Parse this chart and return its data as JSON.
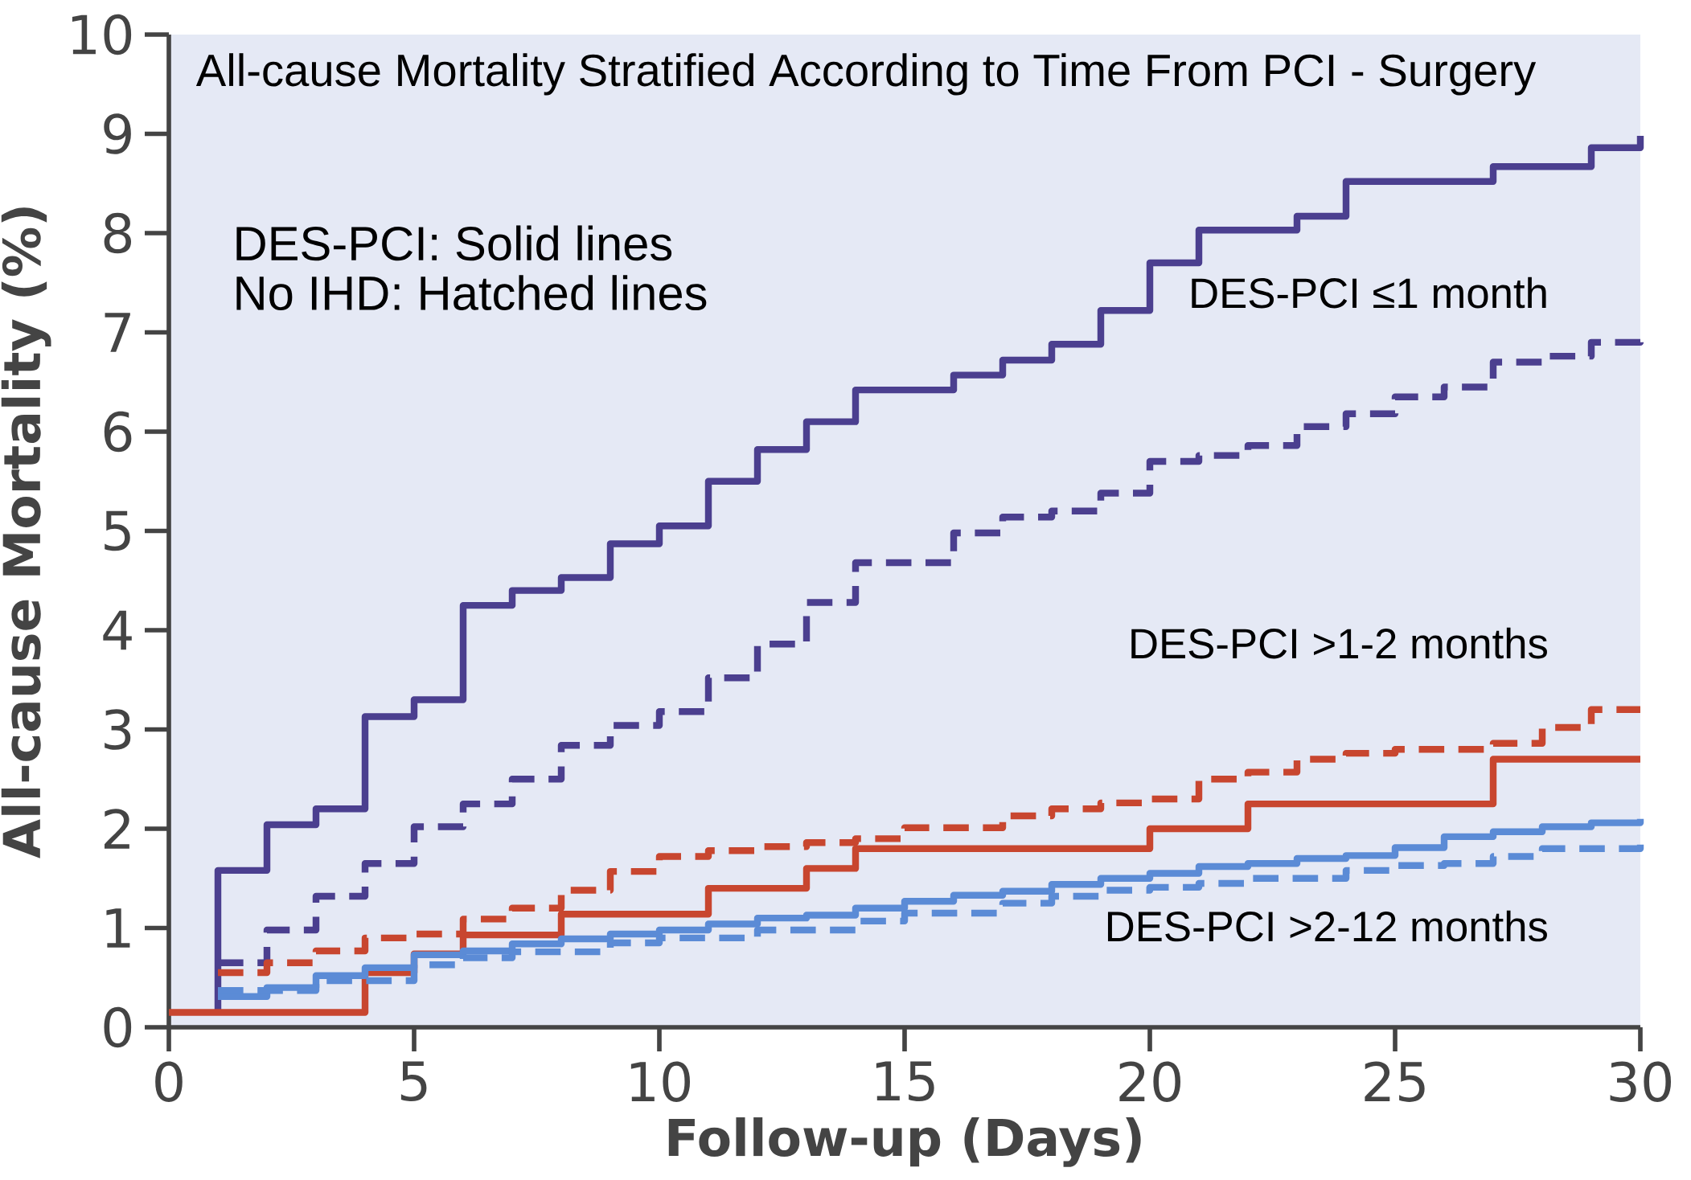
{
  "chart_data": {
    "type": "step",
    "title": "All-cause Mortality Stratified According to Time From PCI - Surgery",
    "xlabel": "Follow-up (Days)",
    "ylabel": "All-cause Mortality (%)",
    "xlim": [
      0,
      30
    ],
    "ylim": [
      0,
      10
    ],
    "xticks": [
      0,
      5,
      10,
      15,
      20,
      25,
      30
    ],
    "yticks": [
      0,
      1,
      2,
      3,
      4,
      5,
      6,
      7,
      8,
      9,
      10
    ],
    "grid": false,
    "legend": false,
    "annotations": [
      "DES-PCI: Solid lines",
      "No IHD: Hatched lines"
    ],
    "series": [
      {
        "name": "DES-PCI ≤1 month",
        "color": "#4b3f8f",
        "line_style": "solid",
        "x": [
          1,
          1,
          2,
          3,
          4,
          5,
          6,
          7,
          8,
          9,
          10,
          11,
          12,
          13,
          14,
          16,
          17,
          18,
          19,
          20,
          21,
          23,
          24,
          27,
          29,
          30
        ],
        "values": [
          0.15,
          1.58,
          2.04,
          2.2,
          3.13,
          3.3,
          4.25,
          4.4,
          4.53,
          4.87,
          5.05,
          5.5,
          5.82,
          6.1,
          6.42,
          6.57,
          6.72,
          6.88,
          7.22,
          7.7,
          8.03,
          8.17,
          8.52,
          8.67,
          8.86,
          8.98
        ]
      },
      {
        "color": "#4b3f8f",
        "line_style": "dashed",
        "x": [
          1,
          2,
          3,
          4,
          5,
          6,
          7,
          8,
          9,
          10,
          11,
          12,
          13,
          14,
          16,
          17,
          18,
          19,
          20,
          21,
          22,
          23,
          24,
          25,
          26,
          27,
          28,
          29,
          30
        ],
        "values": [
          0.65,
          0.98,
          1.32,
          1.65,
          2.02,
          2.25,
          2.5,
          2.84,
          3.04,
          3.18,
          3.52,
          3.86,
          4.28,
          4.68,
          4.98,
          5.14,
          5.2,
          5.38,
          5.7,
          5.76,
          5.86,
          6.05,
          6.18,
          6.35,
          6.45,
          6.7,
          6.76,
          6.9,
          6.98
        ]
      },
      {
        "name": "DES-PCI >1-2 months",
        "color": "#c8462f",
        "line_style": "solid",
        "x": [
          0,
          4,
          5,
          6,
          8,
          11,
          13,
          14,
          20,
          22,
          27,
          30
        ],
        "values": [
          0.15,
          0.55,
          0.74,
          0.93,
          1.14,
          1.4,
          1.6,
          1.8,
          2.0,
          2.25,
          2.7,
          2.7
        ]
      },
      {
        "color": "#c8462f",
        "line_style": "dashed",
        "x": [
          1,
          2,
          3,
          4,
          5,
          6,
          7,
          8,
          9,
          10,
          11,
          12,
          13,
          14,
          15,
          17,
          18,
          19,
          20,
          21,
          22,
          23,
          24,
          25,
          27,
          28,
          29,
          30
        ],
        "values": [
          0.55,
          0.65,
          0.77,
          0.9,
          0.94,
          1.09,
          1.2,
          1.38,
          1.57,
          1.72,
          1.78,
          1.82,
          1.86,
          1.9,
          2.01,
          2.13,
          2.2,
          2.26,
          2.3,
          2.5,
          2.57,
          2.7,
          2.76,
          2.8,
          2.86,
          3.02,
          3.2,
          3.2
        ]
      },
      {
        "name": "DES-PCI >2-12 months",
        "color": "#5b8bd6",
        "line_style": "solid",
        "x": [
          1,
          2,
          3,
          4,
          5,
          6,
          7,
          8,
          9,
          10,
          11,
          12,
          13,
          14,
          15,
          16,
          17,
          18,
          19,
          20,
          21,
          22,
          23,
          24,
          25,
          26,
          27,
          28,
          29,
          30
        ],
        "values": [
          0.31,
          0.4,
          0.52,
          0.6,
          0.73,
          0.77,
          0.84,
          0.89,
          0.94,
          0.98,
          1.04,
          1.1,
          1.13,
          1.2,
          1.27,
          1.33,
          1.37,
          1.44,
          1.5,
          1.55,
          1.62,
          1.65,
          1.7,
          1.73,
          1.81,
          1.92,
          1.97,
          2.02,
          2.06,
          2.1
        ]
      },
      {
        "color": "#5b8bd6",
        "line_style": "dashed",
        "x": [
          1,
          3,
          5,
          6,
          7,
          9,
          10,
          12,
          14,
          15,
          17,
          18,
          19,
          20,
          21,
          22,
          24,
          25,
          26,
          27,
          28,
          30
        ],
        "values": [
          0.37,
          0.47,
          0.63,
          0.7,
          0.76,
          0.85,
          0.9,
          0.98,
          1.07,
          1.15,
          1.25,
          1.32,
          1.38,
          1.41,
          1.45,
          1.5,
          1.58,
          1.63,
          1.65,
          1.72,
          1.8,
          1.87
        ]
      }
    ]
  }
}
